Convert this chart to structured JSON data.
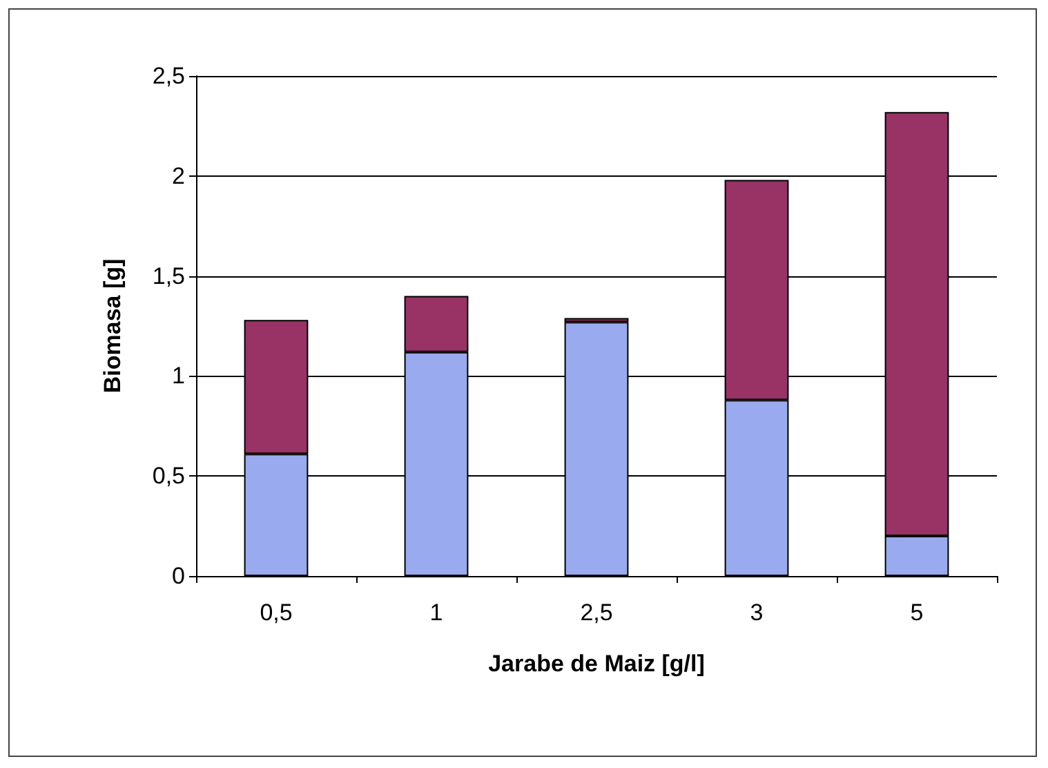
{
  "chart_data": {
    "type": "bar",
    "xlabel": "Jarabe de Maiz [g/l]",
    "ylabel": "Biomasa [g]",
    "categories": [
      "0,5",
      "1",
      "2,5",
      "3",
      "5"
    ],
    "stacked": true,
    "series": [
      {
        "color": "#9aaaee",
        "values": [
          0.61,
          1.12,
          1.27,
          0.88,
          0.2
        ]
      },
      {
        "color": "#993366",
        "values": [
          0.67,
          0.28,
          0.02,
          1.1,
          2.12
        ]
      }
    ],
    "ylim": [
      0,
      2.5
    ],
    "yticks": [
      0,
      {
        "value": 0.5,
        "label": "0,5"
      },
      1,
      {
        "value": 1.5,
        "label": "1,5"
      },
      2,
      {
        "value": 2.5,
        "label": "2,5"
      }
    ],
    "grid": "y"
  }
}
